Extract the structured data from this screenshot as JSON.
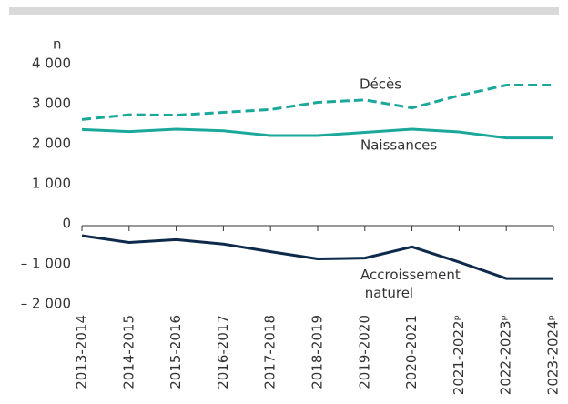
{
  "chart_data": {
    "type": "line",
    "y_unit_label": "n",
    "categories": [
      "2013-2014",
      "2014-2015",
      "2015-2016",
      "2016-2017",
      "2017-2018",
      "2018-2019",
      "2019-2020",
      "2020-2021",
      "2021-2022ᵖ",
      "2022-2023ᵖ",
      "2023-2024ᵖ"
    ],
    "series": [
      {
        "name": "Décès",
        "color": "#1ba89b",
        "style": "dashed",
        "values": [
          2650,
          2770,
          2760,
          2830,
          2900,
          3080,
          3140,
          2940,
          3250,
          3510,
          3510
        ]
      },
      {
        "name": "Naissances",
        "color": "#1ba89b",
        "style": "solid",
        "values": [
          2400,
          2350,
          2410,
          2370,
          2250,
          2250,
          2330,
          2410,
          2340,
          2190,
          2190
        ]
      },
      {
        "name": "Accroissement naturel",
        "color": "#0d2a4b",
        "style": "solid",
        "values": [
          -250,
          -420,
          -350,
          -460,
          -650,
          -830,
          -810,
          -530,
          -910,
          -1320,
          -1320
        ]
      }
    ],
    "ylim": [
      -2000,
      4000
    ],
    "yticks": [
      {
        "value": 4000,
        "label": "4 000"
      },
      {
        "value": 3000,
        "label": "3 000"
      },
      {
        "value": 2000,
        "label": "2 000"
      },
      {
        "value": 1000,
        "label": "1 000"
      },
      0,
      {
        "value": -1000,
        "label": "– 1 000"
      },
      {
        "value": -2000,
        "label": "– 2 000"
      }
    ],
    "grid": false
  }
}
